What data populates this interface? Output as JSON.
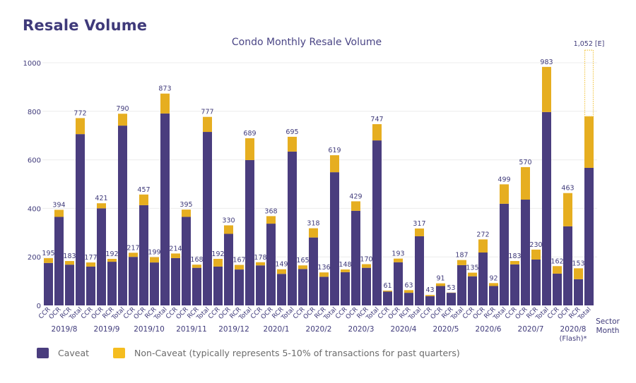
{
  "page": {
    "title": "Resale Volume"
  },
  "colors": {
    "caveat": "#4a3d7e",
    "non_caveat": "#e6ae20",
    "text": "#3f3a7a",
    "grid": "#ececec"
  },
  "legend": {
    "items": [
      {
        "label": "Caveat",
        "color": "#4a3d7e"
      },
      {
        "label": "Non-Caveat (typically represents 5-10% of transactions for past quarters)",
        "color": "#f5bd1f"
      }
    ]
  },
  "chart_data": {
    "type": "bar",
    "stacked": true,
    "title": "Condo Monthly Resale Volume",
    "xlabel": "Sector\nMonth",
    "ylabel": "",
    "ylim": [
      0,
      1000
    ],
    "yticks": [
      0,
      200,
      400,
      600,
      800,
      1000
    ],
    "grid": true,
    "legend_position": "bottom-left",
    "sectors": [
      "CCR",
      "OCR",
      "RCR",
      "Total"
    ],
    "months": [
      "2019/8",
      "2019/9",
      "2019/10",
      "2019/11",
      "2019/12",
      "2020/1",
      "2020/2",
      "2020/3",
      "2020/4",
      "2020/5",
      "2020/6",
      "2020/7",
      "2020/8 (Flash)*"
    ],
    "series": [
      {
        "name": "Caveat",
        "values": [
          175,
          365,
          168,
          706,
          160,
          400,
          180,
          741,
          200,
          413,
          177,
          791,
          195,
          365,
          155,
          715,
          160,
          295,
          148,
          599,
          165,
          337,
          130,
          634,
          150,
          280,
          118,
          549,
          137,
          390,
          155,
          680,
          57,
          178,
          52,
          285,
          38,
          80,
          52,
          166,
          120,
          218,
          80,
          419,
          169,
          436,
          189,
          797,
          131,
          326,
          108,
          567
        ]
      },
      {
        "name": "Non-Caveat",
        "values": [
          20,
          29,
          15,
          66,
          17,
          21,
          12,
          49,
          17,
          44,
          22,
          82,
          19,
          30,
          13,
          62,
          32,
          35,
          19,
          90,
          13,
          31,
          19,
          61,
          15,
          38,
          18,
          70,
          11,
          39,
          15,
          67,
          4,
          15,
          11,
          32,
          5,
          11,
          1,
          21,
          15,
          54,
          12,
          80,
          14,
          134,
          41,
          186,
          31,
          137,
          45,
          212
        ]
      }
    ],
    "totals": [
      195,
      394,
      183,
      772,
      177,
      421,
      192,
      790,
      217,
      457,
      199,
      873,
      214,
      395,
      168,
      777,
      192,
      330,
      167,
      689,
      178,
      368,
      149,
      695,
      165,
      318,
      136,
      619,
      148,
      429,
      170,
      747,
      61,
      193,
      63,
      317,
      43,
      91,
      53,
      187,
      135,
      272,
      92,
      499,
      183,
      570,
      230,
      983,
      162,
      463,
      153,
      null
    ],
    "estimate": {
      "month": "2020/8 (Flash)*",
      "sector": "Total",
      "current_value": 779,
      "estimated_value": 1052,
      "label": "1,052 [E]"
    }
  }
}
